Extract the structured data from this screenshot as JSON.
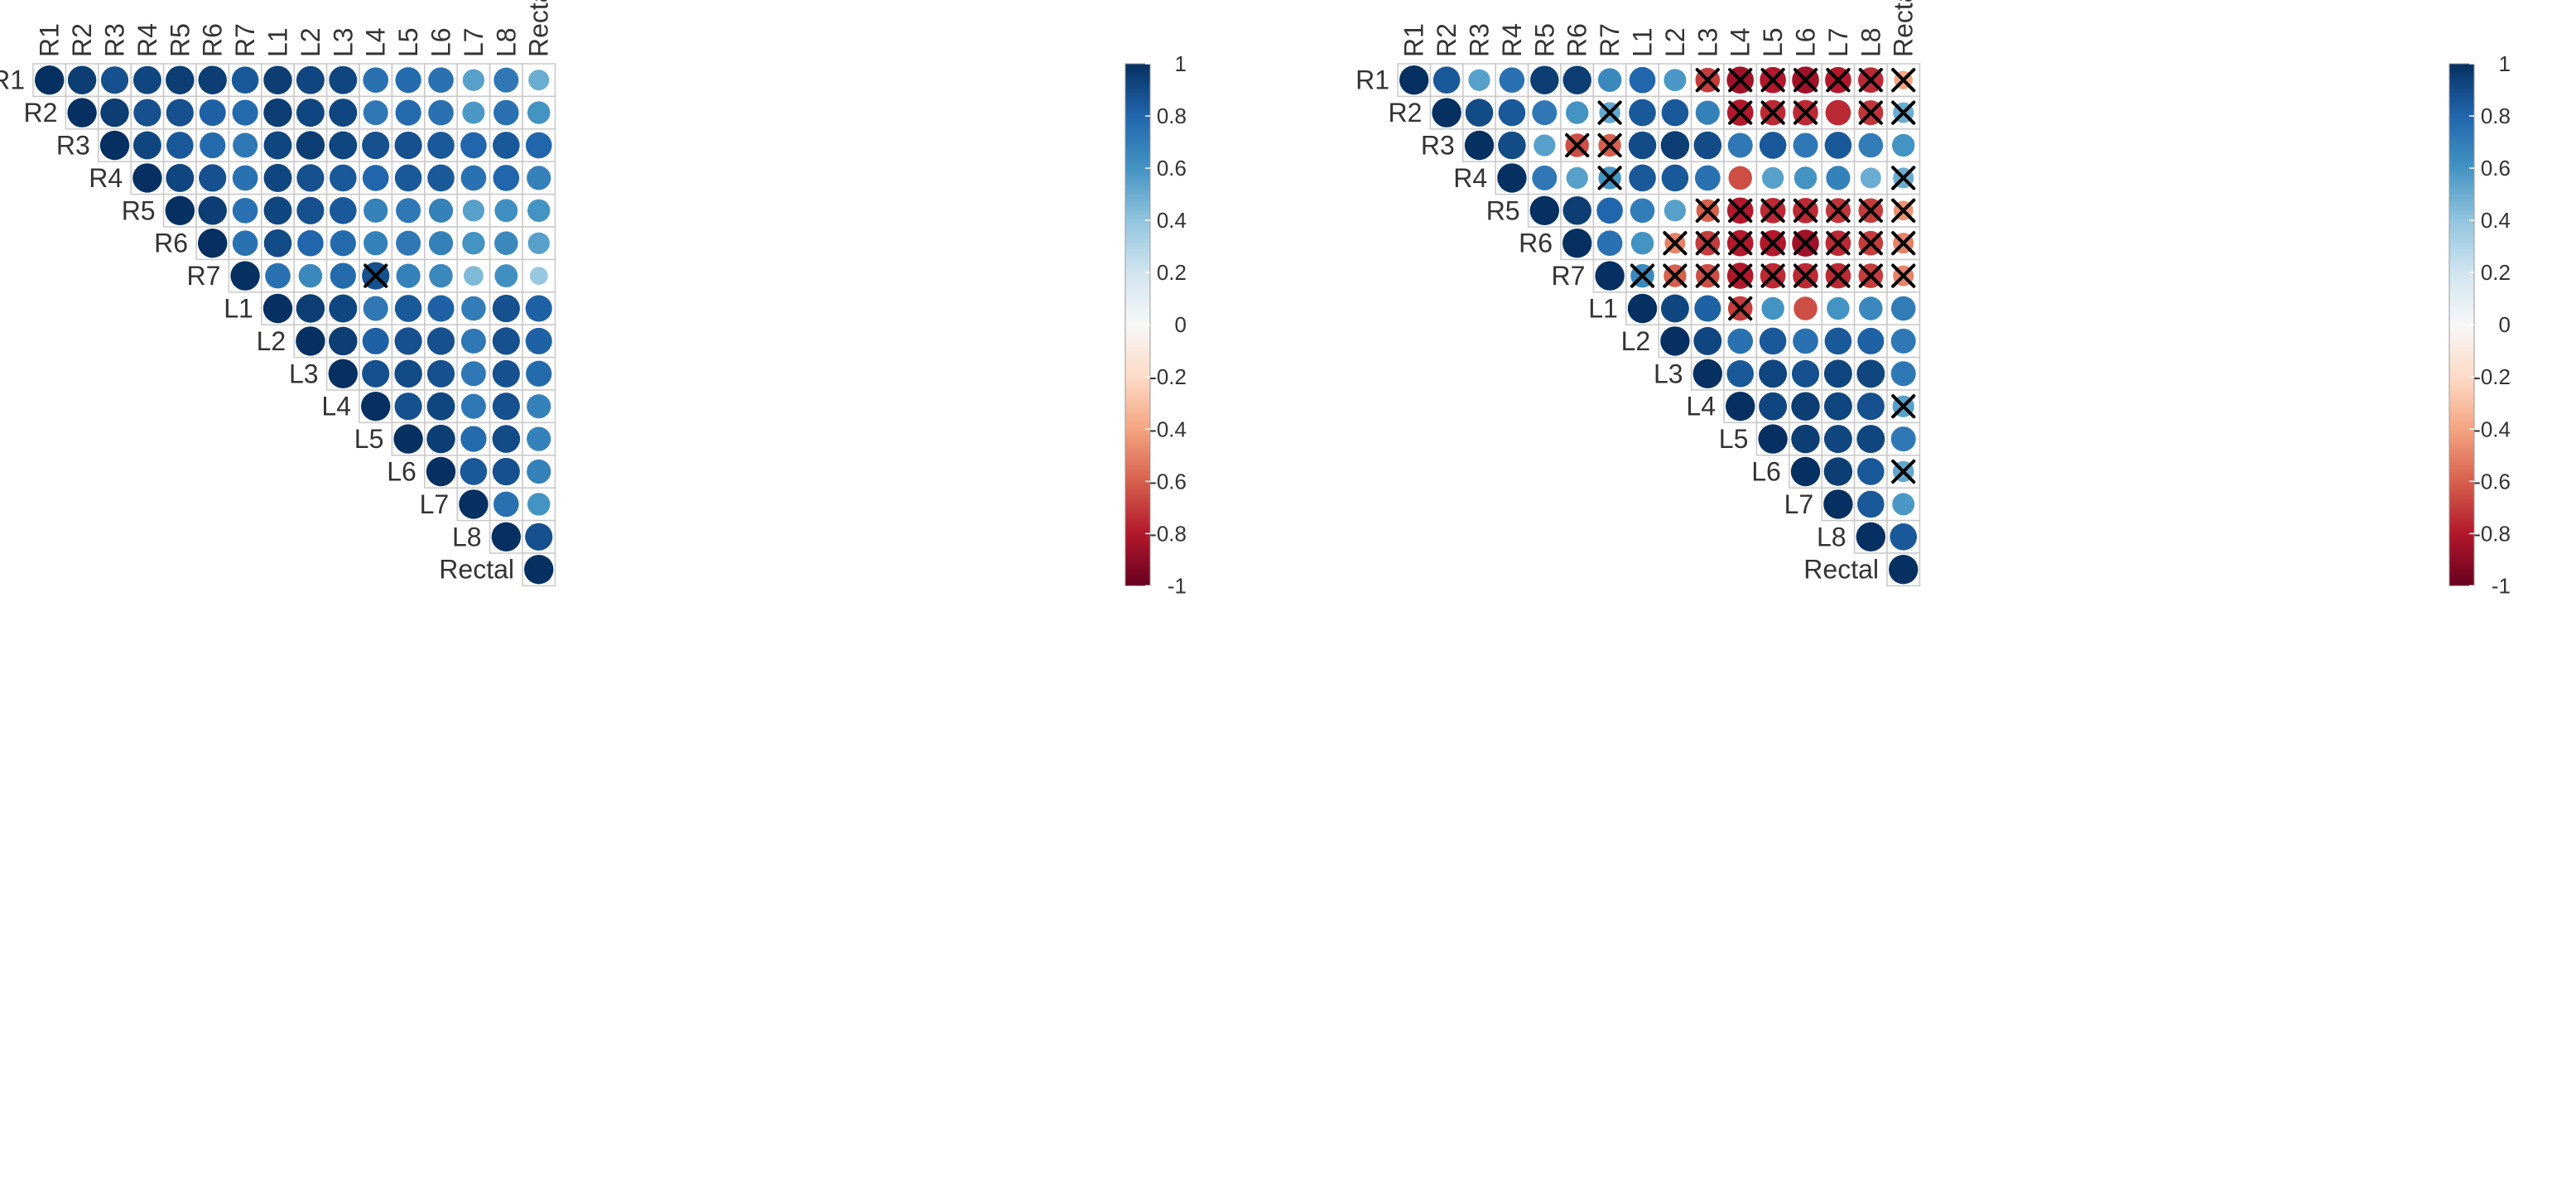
{
  "chart_data": [
    {
      "type": "heatmap",
      "subtype": "correlation-circle-upper-triangle",
      "title": "",
      "labels": [
        "R1",
        "R2",
        "R3",
        "R4",
        "R5",
        "R6",
        "R7",
        "L1",
        "L2",
        "L3",
        "L4",
        "L5",
        "L6",
        "L7",
        "L8",
        "Rectal"
      ],
      "color_range": [
        -1,
        1
      ],
      "colorbar_ticks": [
        "1",
        "0.8",
        "0.6",
        "0.4",
        "0.2",
        "0",
        "-0.2",
        "-0.4",
        "-0.6",
        "-0.8",
        "-1"
      ],
      "colorbar_tick_values": [
        1,
        0.8,
        0.6,
        0.4,
        0.2,
        0,
        -0.2,
        -0.4,
        -0.6,
        -0.8,
        -1
      ],
      "rows": [
        [
          1.0,
          0.95,
          0.88,
          0.92,
          0.95,
          0.95,
          0.85,
          0.95,
          0.92,
          0.92,
          0.75,
          0.78,
          0.75,
          0.55,
          0.72,
          0.5
        ],
        [
          1.0,
          0.95,
          0.88,
          0.88,
          0.82,
          0.78,
          0.95,
          0.92,
          0.92,
          0.72,
          0.78,
          0.75,
          0.58,
          0.75,
          0.6
        ],
        [
          1.0,
          0.92,
          0.85,
          0.78,
          0.72,
          0.92,
          0.95,
          0.92,
          0.88,
          0.88,
          0.85,
          0.8,
          0.85,
          0.8
        ],
        [
          1.0,
          0.92,
          0.88,
          0.75,
          0.92,
          0.88,
          0.85,
          0.8,
          0.85,
          0.85,
          0.75,
          0.8,
          0.68
        ],
        [
          1.0,
          0.95,
          0.75,
          0.92,
          0.88,
          0.85,
          0.68,
          0.72,
          0.68,
          0.55,
          0.62,
          0.6
        ],
        [
          1.0,
          0.75,
          0.9,
          0.8,
          0.78,
          0.68,
          0.72,
          0.68,
          0.6,
          0.65,
          0.55
        ],
        [
          1.0,
          0.75,
          0.65,
          0.78,
          0.88,
          0.68,
          0.65,
          0.45,
          0.62,
          0.38
        ],
        [
          1.0,
          0.95,
          0.92,
          0.72,
          0.85,
          0.82,
          0.7,
          0.88,
          0.82
        ],
        [
          1.0,
          0.95,
          0.82,
          0.88,
          0.88,
          0.72,
          0.88,
          0.82
        ],
        [
          1.0,
          0.88,
          0.9,
          0.88,
          0.72,
          0.88,
          0.78
        ],
        [
          1.0,
          0.88,
          0.92,
          0.72,
          0.88,
          0.68
        ],
        [
          1.0,
          0.95,
          0.78,
          0.9,
          0.68
        ],
        [
          1.0,
          0.85,
          0.88,
          0.68
        ],
        [
          1.0,
          0.75,
          0.6
        ],
        [
          1.0,
          0.88
        ],
        [
          1.0
        ]
      ],
      "crossed": [
        [
          6,
          10
        ]
      ]
    },
    {
      "type": "heatmap",
      "subtype": "correlation-circle-upper-triangle",
      "title": "",
      "labels": [
        "R1",
        "R2",
        "R3",
        "R4",
        "R5",
        "R6",
        "R7",
        "L1",
        "L2",
        "L3",
        "L4",
        "L5",
        "L6",
        "L7",
        "L8",
        "Rectal"
      ],
      "color_range": [
        -1,
        1
      ],
      "colorbar_ticks": [
        "1",
        "0.8",
        "0.6",
        "0.4",
        "0.2",
        "0",
        "-0.2",
        "-0.4",
        "-0.6",
        "-0.8",
        "-1"
      ],
      "colorbar_tick_values": [
        1,
        0.8,
        0.6,
        0.4,
        0.2,
        0,
        -0.2,
        -0.4,
        -0.6,
        -0.8,
        -1
      ],
      "rows": [
        [
          1.0,
          0.85,
          0.55,
          0.75,
          0.95,
          0.95,
          0.65,
          0.8,
          0.58,
          -0.7,
          -0.85,
          -0.8,
          -0.85,
          -0.8,
          -0.75,
          -0.4
        ],
        [
          1.0,
          0.9,
          0.85,
          0.72,
          0.6,
          0.52,
          0.85,
          0.85,
          0.68,
          -0.8,
          -0.75,
          -0.75,
          -0.75,
          -0.72,
          0.5
        ],
        [
          1.0,
          0.9,
          0.55,
          -0.65,
          -0.6,
          0.9,
          0.95,
          0.9,
          0.72,
          0.85,
          0.72,
          0.85,
          0.7,
          0.6
        ],
        [
          1.0,
          0.72,
          0.55,
          0.6,
          0.85,
          0.85,
          0.75,
          -0.65,
          0.55,
          0.6,
          0.68,
          0.5,
          0.5
        ],
        [
          1.0,
          0.95,
          0.8,
          0.7,
          0.55,
          -0.6,
          -0.8,
          -0.75,
          -0.75,
          -0.72,
          -0.7,
          -0.45
        ],
        [
          1.0,
          0.75,
          0.6,
          -0.5,
          -0.7,
          -0.8,
          -0.8,
          -0.85,
          -0.75,
          -0.7,
          -0.5
        ],
        [
          1.0,
          0.65,
          -0.6,
          -0.65,
          -0.8,
          -0.75,
          -0.75,
          -0.75,
          -0.7,
          -0.5
        ],
        [
          1.0,
          0.92,
          0.82,
          -0.7,
          0.6,
          -0.65,
          0.6,
          0.65,
          0.7
        ],
        [
          1.0,
          0.92,
          0.75,
          0.85,
          0.75,
          0.85,
          0.82,
          0.72
        ],
        [
          1.0,
          0.85,
          0.92,
          0.88,
          0.92,
          0.92,
          0.72
        ],
        [
          1.0,
          0.92,
          0.95,
          0.92,
          0.88,
          0.55
        ],
        [
          1.0,
          0.95,
          0.92,
          0.92,
          0.72
        ],
        [
          1.0,
          0.95,
          0.85,
          0.52
        ],
        [
          1.0,
          0.85,
          0.58
        ],
        [
          1.0,
          0.85
        ],
        [
          1.0
        ]
      ],
      "crossed": [
        [
          0,
          9
        ],
        [
          0,
          10
        ],
        [
          0,
          11
        ],
        [
          0,
          12
        ],
        [
          0,
          13
        ],
        [
          0,
          14
        ],
        [
          0,
          15
        ],
        [
          1,
          6
        ],
        [
          1,
          10
        ],
        [
          1,
          11
        ],
        [
          1,
          12
        ],
        [
          1,
          14
        ],
        [
          1,
          15
        ],
        [
          2,
          5
        ],
        [
          2,
          6
        ],
        [
          3,
          6
        ],
        [
          3,
          15
        ],
        [
          4,
          9
        ],
        [
          4,
          10
        ],
        [
          4,
          11
        ],
        [
          4,
          12
        ],
        [
          4,
          13
        ],
        [
          4,
          14
        ],
        [
          4,
          15
        ],
        [
          5,
          8
        ],
        [
          5,
          9
        ],
        [
          5,
          10
        ],
        [
          5,
          11
        ],
        [
          5,
          12
        ],
        [
          5,
          13
        ],
        [
          5,
          14
        ],
        [
          5,
          15
        ],
        [
          6,
          7
        ],
        [
          6,
          8
        ],
        [
          6,
          9
        ],
        [
          6,
          10
        ],
        [
          6,
          11
        ],
        [
          6,
          12
        ],
        [
          6,
          13
        ],
        [
          6,
          14
        ],
        [
          6,
          15
        ],
        [
          7,
          10
        ],
        [
          10,
          15
        ],
        [
          12,
          15
        ]
      ]
    }
  ]
}
